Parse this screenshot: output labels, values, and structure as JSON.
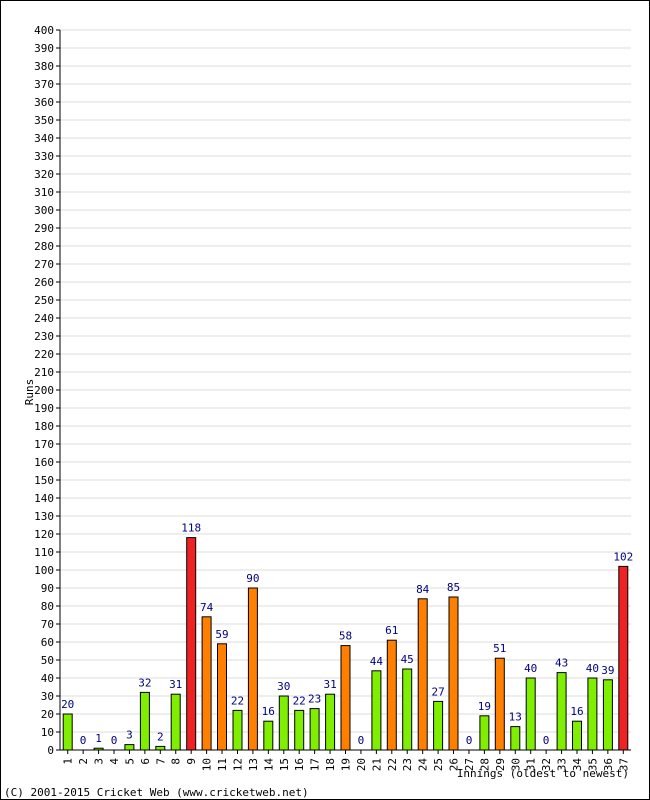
{
  "chart_data": {
    "type": "bar",
    "ylabel": "Runs",
    "xlabel": "Innings (oldest to newest)",
    "ylim": [
      0,
      400
    ],
    "ytick_step": 10,
    "grid": true,
    "categories": [
      "1",
      "2",
      "3",
      "4",
      "5",
      "6",
      "7",
      "8",
      "9",
      "10",
      "11",
      "12",
      "13",
      "14",
      "15",
      "16",
      "17",
      "18",
      "19",
      "20",
      "21",
      "22",
      "23",
      "24",
      "25",
      "26",
      "27",
      "28",
      "29",
      "30",
      "31",
      "32",
      "33",
      "34",
      "35",
      "36",
      "37"
    ],
    "values": [
      20,
      0,
      1,
      0,
      3,
      32,
      2,
      31,
      118,
      74,
      59,
      22,
      90,
      16,
      30,
      22,
      23,
      31,
      58,
      0,
      44,
      61,
      45,
      84,
      27,
      85,
      0,
      19,
      51,
      13,
      40,
      0,
      43,
      16,
      40,
      39,
      102
    ],
    "color_bands": [
      {
        "range": "0-49",
        "color": "#7fee00"
      },
      {
        "range": "50-99",
        "color": "#ff8000"
      },
      {
        "range": "100+",
        "color": "#ee2222"
      }
    ],
    "label_color": "#000080"
  },
  "footer": {
    "copyright": "(C) 2001-2015 Cricket Web (www.cricketweb.net)"
  }
}
